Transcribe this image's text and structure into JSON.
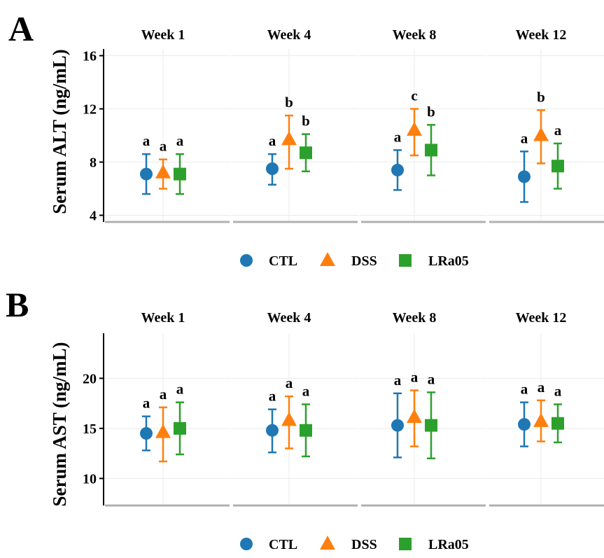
{
  "colors": {
    "CTL": "#1f77b4",
    "DSS": "#ff7f0e",
    "LRa05": "#2ca02c"
  },
  "legend": [
    {
      "label": "CTL",
      "marker": "circle"
    },
    {
      "label": "DSS",
      "marker": "triangle"
    },
    {
      "label": "LRa05",
      "marker": "square"
    }
  ],
  "chart_data": [
    {
      "panel_label": "A",
      "type": "scatter",
      "ylabel": "Serum ALT (ng/mL)",
      "yticks": [
        4,
        8,
        12,
        16
      ],
      "ylim": [
        3.5,
        16.5
      ],
      "facets": [
        {
          "title": "Week 1",
          "points": [
            {
              "group": "CTL",
              "mean": 7.1,
              "low": 5.6,
              "high": 8.6,
              "letter": "a"
            },
            {
              "group": "DSS",
              "mean": 7.2,
              "low": 6.0,
              "high": 8.2,
              "letter": "a"
            },
            {
              "group": "LRa05",
              "mean": 7.1,
              "low": 5.6,
              "high": 8.6,
              "letter": "a"
            }
          ]
        },
        {
          "title": "Week 4",
          "points": [
            {
              "group": "CTL",
              "mean": 7.5,
              "low": 6.3,
              "high": 8.6,
              "letter": "a"
            },
            {
              "group": "DSS",
              "mean": 9.7,
              "low": 7.5,
              "high": 11.5,
              "letter": "b"
            },
            {
              "group": "LRa05",
              "mean": 8.7,
              "low": 7.3,
              "high": 10.1,
              "letter": "b"
            }
          ]
        },
        {
          "title": "Week 8",
          "points": [
            {
              "group": "CTL",
              "mean": 7.4,
              "low": 5.9,
              "high": 8.9,
              "letter": "a"
            },
            {
              "group": "DSS",
              "mean": 10.4,
              "low": 8.5,
              "high": 12.0,
              "letter": "c"
            },
            {
              "group": "LRa05",
              "mean": 8.9,
              "low": 7.0,
              "high": 10.8,
              "letter": "b"
            }
          ]
        },
        {
          "title": "Week 12",
          "points": [
            {
              "group": "CTL",
              "mean": 6.9,
              "low": 5.0,
              "high": 8.8,
              "letter": "a"
            },
            {
              "group": "DSS",
              "mean": 10.0,
              "low": 7.9,
              "high": 11.9,
              "letter": "b"
            },
            {
              "group": "LRa05",
              "mean": 7.7,
              "low": 6.0,
              "high": 9.4,
              "letter": "a"
            }
          ]
        }
      ]
    },
    {
      "panel_label": "B",
      "type": "scatter",
      "ylabel": "Serum AST (ng/mL)",
      "yticks": [
        10,
        15,
        20
      ],
      "ylim": [
        7.3,
        24.5
      ],
      "facets": [
        {
          "title": "Week 1",
          "points": [
            {
              "group": "CTL",
              "mean": 14.5,
              "low": 12.8,
              "high": 16.2,
              "letter": "a"
            },
            {
              "group": "DSS",
              "mean": 14.6,
              "low": 11.7,
              "high": 17.1,
              "letter": "a"
            },
            {
              "group": "LRa05",
              "mean": 15.0,
              "low": 12.4,
              "high": 17.6,
              "letter": "a"
            }
          ]
        },
        {
          "title": "Week 4",
          "points": [
            {
              "group": "CTL",
              "mean": 14.8,
              "low": 12.6,
              "high": 16.9,
              "letter": "a"
            },
            {
              "group": "DSS",
              "mean": 15.8,
              "low": 13.0,
              "high": 18.2,
              "letter": "a"
            },
            {
              "group": "LRa05",
              "mean": 14.8,
              "low": 12.2,
              "high": 17.4,
              "letter": "a"
            }
          ]
        },
        {
          "title": "Week 8",
          "points": [
            {
              "group": "CTL",
              "mean": 15.3,
              "low": 12.1,
              "high": 18.5,
              "letter": "a"
            },
            {
              "group": "DSS",
              "mean": 16.1,
              "low": 13.2,
              "high": 18.8,
              "letter": "a"
            },
            {
              "group": "LRa05",
              "mean": 15.3,
              "low": 12.0,
              "high": 18.6,
              "letter": "a"
            }
          ]
        },
        {
          "title": "Week 12",
          "points": [
            {
              "group": "CTL",
              "mean": 15.4,
              "low": 13.2,
              "high": 17.6,
              "letter": "a"
            },
            {
              "group": "DSS",
              "mean": 15.7,
              "low": 13.7,
              "high": 17.8,
              "letter": "a"
            },
            {
              "group": "LRa05",
              "mean": 15.5,
              "low": 13.6,
              "high": 17.4,
              "letter": "a"
            }
          ]
        }
      ]
    }
  ]
}
